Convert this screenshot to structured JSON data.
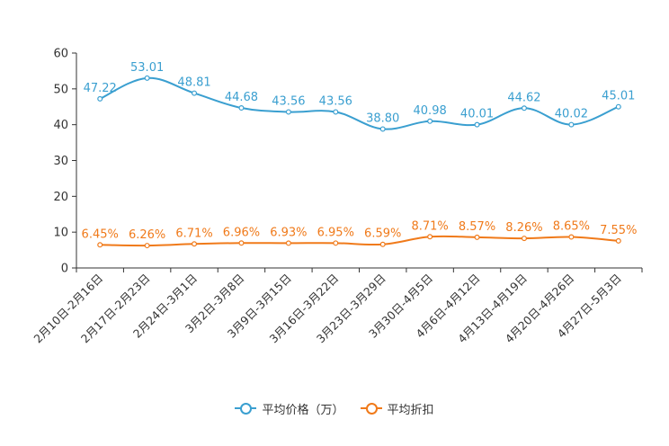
{
  "chart_data": {
    "type": "line",
    "title": "",
    "xlabel": "",
    "ylabel": "",
    "ylim": [
      0,
      60
    ],
    "yticks": [
      "0",
      "10",
      "20",
      "30",
      "40",
      "50",
      "60"
    ],
    "categories": [
      "2月10日-2月16日",
      "2月17日-2月23日",
      "2月24日-3月1日",
      "3月2日-3月8日",
      "3月9日-3月15日",
      "3月16日-3月22日",
      "3月23日-3月29日",
      "3月30日-4月5日",
      "4月6日-4月12日",
      "4月13日-4月19日",
      "4月20日-4月26日",
      "4月27日-5月3日"
    ],
    "series": [
      {
        "name": "平均价格（万）",
        "color": "#3a9fd0",
        "values": [
          47.22,
          53.01,
          48.81,
          44.68,
          43.56,
          43.56,
          38.8,
          40.98,
          40.01,
          44.62,
          40.02,
          45.01
        ],
        "labels": [
          "47.22",
          "53.01",
          "48.81",
          "44.68",
          "43.56",
          "43.56",
          "38.80",
          "40.98",
          "40.01",
          "44.62",
          "40.02",
          "45.01"
        ]
      },
      {
        "name": "平均折扣",
        "color": "#f07a1a",
        "values": [
          6.45,
          6.26,
          6.71,
          6.96,
          6.93,
          6.95,
          6.59,
          8.71,
          8.57,
          8.26,
          8.65,
          7.55
        ],
        "labels": [
          "6.45%",
          "6.26%",
          "6.71%",
          "6.96%",
          "6.93%",
          "6.95%",
          "6.59%",
          "8.71%",
          "8.57%",
          "8.26%",
          "8.65%",
          "7.55%"
        ]
      }
    ],
    "legend_position": "bottom-center"
  }
}
